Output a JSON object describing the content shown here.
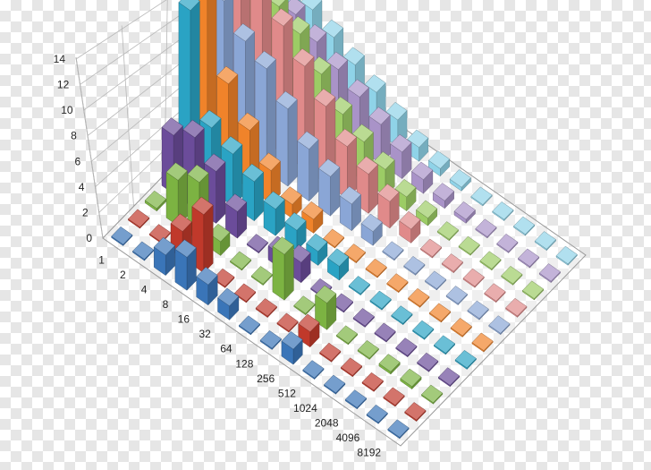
{
  "chart_data": {
    "type": "bar3d",
    "title": "",
    "xlabel": "",
    "ylabel": "",
    "zlim": [
      0,
      14
    ],
    "grid": true,
    "z_ticks": [
      "0",
      "2",
      "4",
      "6",
      "8",
      "10",
      "12",
      "14"
    ],
    "categories": [
      "1",
      "2",
      "4",
      "8",
      "16",
      "32",
      "64",
      "128",
      "256",
      "512",
      "1024",
      "2048",
      "4096",
      "8192"
    ],
    "series": [
      {
        "color": "#3a75b8",
        "values": [
          0.1,
          0.1,
          1.6,
          2.6,
          1.6,
          1.1,
          0.1,
          0.1,
          1.2,
          0.1,
          0.1,
          0.1,
          0.1,
          0.1
        ]
      },
      {
        "color": "#c0392b",
        "values": [
          0.1,
          0.1,
          2.1,
          4.6,
          0.1,
          0.1,
          0.1,
          0.1,
          1.2,
          0.1,
          0.1,
          0.1,
          0.1,
          0.1
        ]
      },
      {
        "color": "#7cb342",
        "values": [
          0.2,
          3.6,
          4.6,
          1.1,
          0.1,
          0.1,
          3.6,
          0.1,
          2.1,
          0.1,
          0.1,
          0.2,
          0.2,
          0.1
        ]
      },
      {
        "color": "#6b4c9a",
        "values": [
          4.6,
          5.6,
          4.1,
          2.1,
          0.1,
          1.1,
          1.6,
          0.1,
          0.1,
          0.1,
          0.1,
          0.1,
          0.1,
          0.1
        ]
      },
      {
        "color": "#2aa3c4",
        "values": [
          13.1,
          5.0,
          4.1,
          3.1,
          2.1,
          1.6,
          1.1,
          1.1,
          0.1,
          0.1,
          0.1,
          0.1,
          0.1,
          0.1
        ]
      },
      {
        "color": "#f0832a",
        "values": [
          14.1,
          7.1,
          4.6,
          2.6,
          1.1,
          1.1,
          0.1,
          0.1,
          0.1,
          0.1,
          0.1,
          0.1,
          0.1,
          0.1
        ]
      },
      {
        "color": "#8aa6d6",
        "values": [
          11.1,
          9.1,
          8.1,
          6.1,
          4.1,
          3.1,
          2.1,
          1.1,
          0.1,
          0.1,
          0.1,
          0.1,
          0.1,
          0.1
        ]
      },
      {
        "color": "#e08a8a",
        "values": [
          12.1,
          11.1,
          10.1,
          8.1,
          6.1,
          4.1,
          3.1,
          2.1,
          1.1,
          0.1,
          0.1,
          0.1,
          0.1,
          0.1
        ]
      },
      {
        "color": "#9ccc65",
        "values": [
          10.1,
          9.1,
          8.1,
          6.1,
          4.1,
          3.1,
          2.1,
          1.1,
          0.6,
          0.1,
          0.1,
          0.1,
          0.1,
          0.1
        ]
      },
      {
        "color": "#a993c8",
        "values": [
          8.1,
          7.1,
          6.1,
          5.1,
          4.1,
          3.1,
          2.1,
          1.1,
          0.6,
          0.3,
          0.1,
          0.1,
          0.1,
          0.1
        ]
      },
      {
        "color": "#8fd3e8",
        "values": [
          7.1,
          6.1,
          5.1,
          4.1,
          3.1,
          2.1,
          1.1,
          0.6,
          0.3,
          0.1,
          0.1,
          0.1,
          0.1,
          0.1
        ]
      }
    ]
  }
}
